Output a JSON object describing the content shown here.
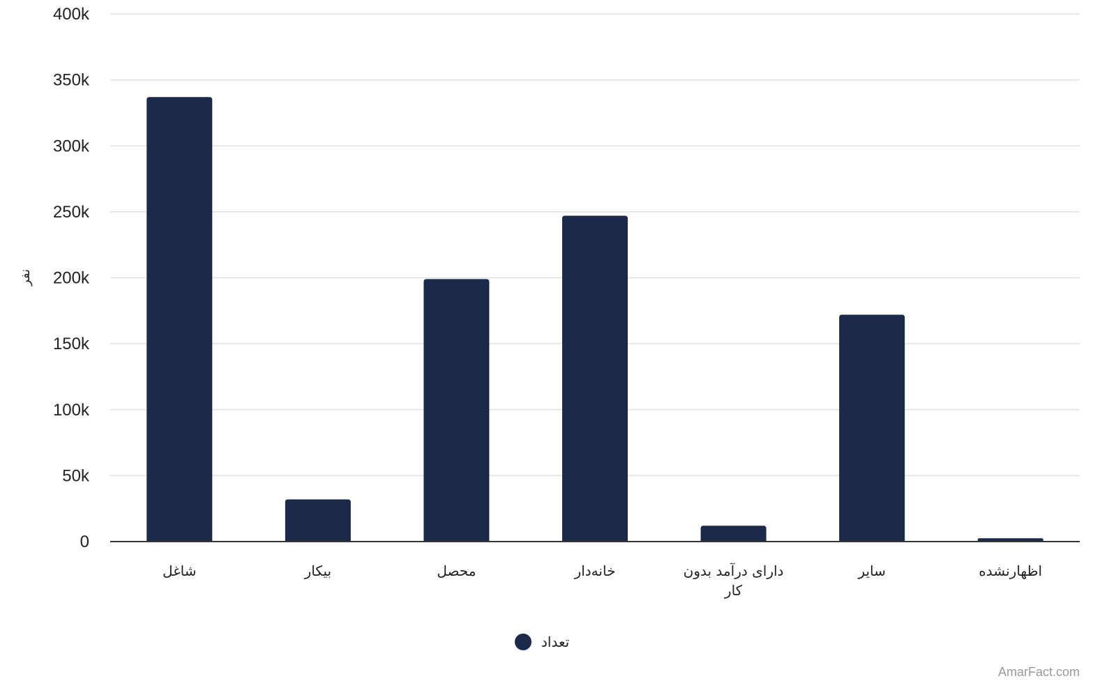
{
  "chart_data": {
    "type": "bar",
    "categories": [
      "شاغل",
      "بیکار",
      "محصل",
      "خانه‌دار",
      "دارای درآمد بدون کار",
      "سایر",
      "اظهارنشده"
    ],
    "series": [
      {
        "name": "تعداد",
        "values": [
          337000,
          32000,
          199000,
          247000,
          12000,
          172000,
          2500
        ]
      }
    ],
    "ylabel": "نفر",
    "xlabel": "",
    "ylim": [
      0,
      400000
    ],
    "yticks": [
      0,
      50000,
      100000,
      150000,
      200000,
      250000,
      300000,
      350000,
      400000
    ],
    "ytick_labels": [
      "0",
      "50k",
      "100k",
      "150k",
      "200k",
      "250k",
      "300k",
      "350k",
      "400k"
    ],
    "grid": true,
    "legend_position": "bottom-center",
    "colors": {
      "bar": "#1b294b",
      "grid": "#e0e0e0",
      "axis": "#333333"
    }
  },
  "watermark": "AmarFact.com"
}
